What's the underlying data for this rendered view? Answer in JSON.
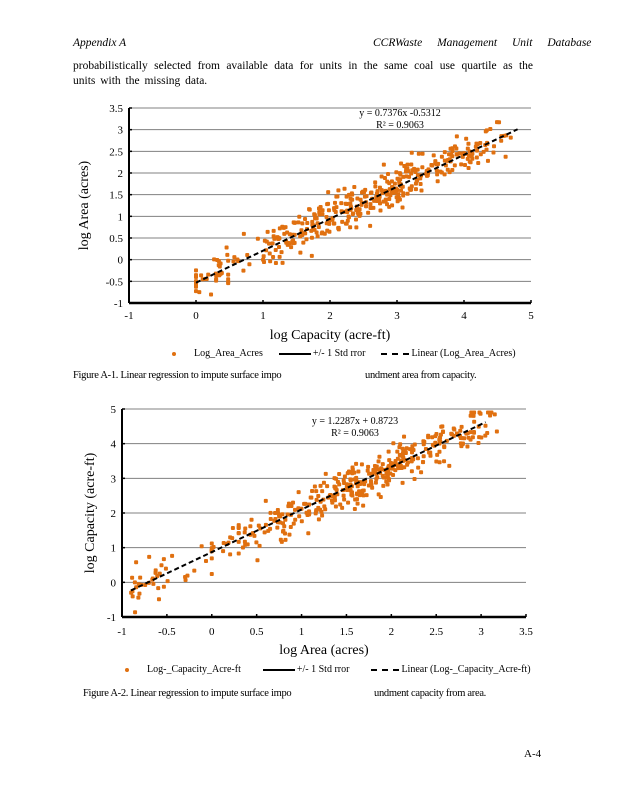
{
  "header": {
    "left": "Appendix   A",
    "right": "CCRWaste Management Unit Database"
  },
  "paragraph": "probabilistically  selected  from  available  data for units in the same coal use quartile as the units with the missing data.",
  "page_number": "A-4",
  "colors": {
    "marker": "#E07010",
    "grid": "#808080",
    "axis": "#000000",
    "trend": "#000000"
  },
  "chart_data": [
    {
      "type": "scatter",
      "id": "figure-a1",
      "title": "",
      "xlabel": "log Capacity (acre-ft)",
      "ylabel": "log Area (acres)",
      "xlim": [
        -1,
        5
      ],
      "ylim": [
        -1,
        3.5
      ],
      "xticks": [
        "-1",
        "0",
        "1",
        "2",
        "3",
        "4",
        "5"
      ],
      "yticks": [
        "-1",
        "-0.5",
        "0",
        "0.5",
        "1",
        "1.5",
        "2",
        "2.5",
        "3",
        "3.5"
      ],
      "grid": "horizontal",
      "trendline": {
        "slope": 0.7376,
        "intercept": -0.5312,
        "x_range": [
          0,
          4.8
        ],
        "style": "dashed"
      },
      "equation": "y = 0.7376x -0.5312",
      "r2": "R² = 0.9063",
      "series_name": "Log_Area_Acres",
      "point_count": 420,
      "residual_sd": 0.22,
      "x_distribution": "concentrated between 1.5 and 4.3",
      "legend": [
        "Log_Area_Acres",
        "+/- 1 Std rror",
        "Linear (Log_Area_Acres)"
      ],
      "legend_position": "bottom",
      "caption_left": "Figure A-1. Linear regression to impute surface impo",
      "caption_right": "undment area from capacity."
    },
    {
      "type": "scatter",
      "id": "figure-a2",
      "title": "",
      "xlabel": "log Area (acres)",
      "ylabel": "log Capacity (acre-ft)",
      "xlim": [
        -1,
        3.5
      ],
      "ylim": [
        -1,
        5
      ],
      "xticks": [
        "-1",
        "-0.5",
        "0",
        "0.5",
        "1",
        "1.5",
        "2",
        "2.5",
        "3",
        "3.5"
      ],
      "yticks": [
        "-1",
        "0",
        "1",
        "2",
        "3",
        "4",
        "5"
      ],
      "grid": "horizontal",
      "trendline": {
        "slope": 1.2287,
        "intercept": 0.8723,
        "x_range": [
          -0.9,
          3.05
        ],
        "style": "dashed"
      },
      "equation": "y = 1.2287x + 0.8723",
      "r2": "R² = 0.9063",
      "series_name": "Log-_Capacity_Acre-ft",
      "point_count": 420,
      "residual_sd": 0.3,
      "x_distribution": "concentrated between 0.5 and 2.8",
      "legend": [
        "Log-_Capacity_Acre-ft",
        "+/- 1 Std rror",
        "Linear (Log-_Capacity_Acre-ft)"
      ],
      "legend_position": "bottom",
      "caption_left": "Figure A-2. Linear regression to impute surface impo",
      "caption_right": "undment capacity from area."
    }
  ]
}
